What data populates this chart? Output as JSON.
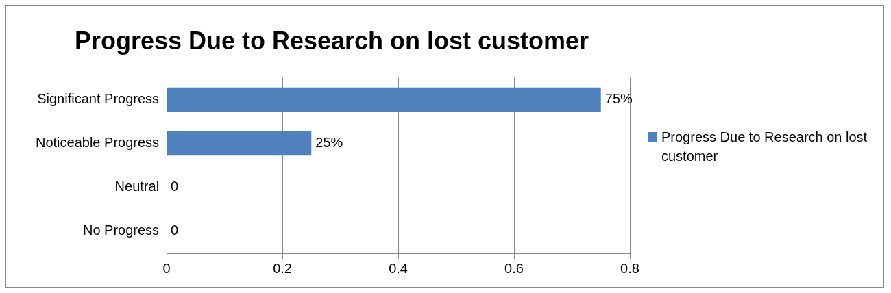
{
  "chart_data": {
    "type": "bar",
    "orientation": "horizontal",
    "title": "Progress Due to Research on lost customer",
    "categories": [
      "Significant Progress",
      "Noticeable Progress",
      "Neutral",
      "No Progress"
    ],
    "series": [
      {
        "name": "Progress Due to Research on lost customer",
        "color": "#4f81bd",
        "values": [
          0.75,
          0.25,
          0,
          0
        ],
        "value_labels": [
          "75%",
          "25%",
          "0",
          "0"
        ]
      }
    ],
    "xlim": [
      0,
      0.8
    ],
    "xticks": [
      0,
      0.2,
      0.4,
      0.6,
      0.8
    ],
    "grid": "x",
    "legend": "right"
  }
}
